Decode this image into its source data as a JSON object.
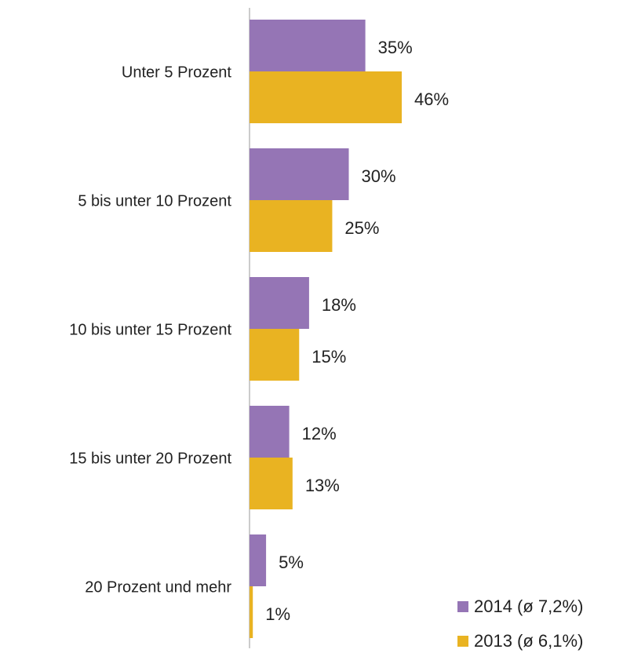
{
  "chart_data": {
    "type": "bar",
    "orientation": "horizontal",
    "categories": [
      "Unter 5 Prozent",
      "5 bis unter 10 Prozent",
      "10 bis unter 15 Prozent",
      "15 bis unter 20 Prozent",
      "20 Prozent und mehr"
    ],
    "series": [
      {
        "name": "2014 (ø 7,2%)",
        "color": "#9575b5",
        "values": [
          35,
          30,
          18,
          12,
          5
        ],
        "value_labels": [
          "35%",
          "30%",
          "18%",
          "12%",
          "5%"
        ]
      },
      {
        "name": "2013 (ø 6,1%)",
        "color": "#e9b322",
        "values": [
          46,
          25,
          15,
          13,
          1
        ],
        "value_labels": [
          "46%",
          "25%",
          "15%",
          "13%",
          "1%"
        ]
      }
    ]
  }
}
